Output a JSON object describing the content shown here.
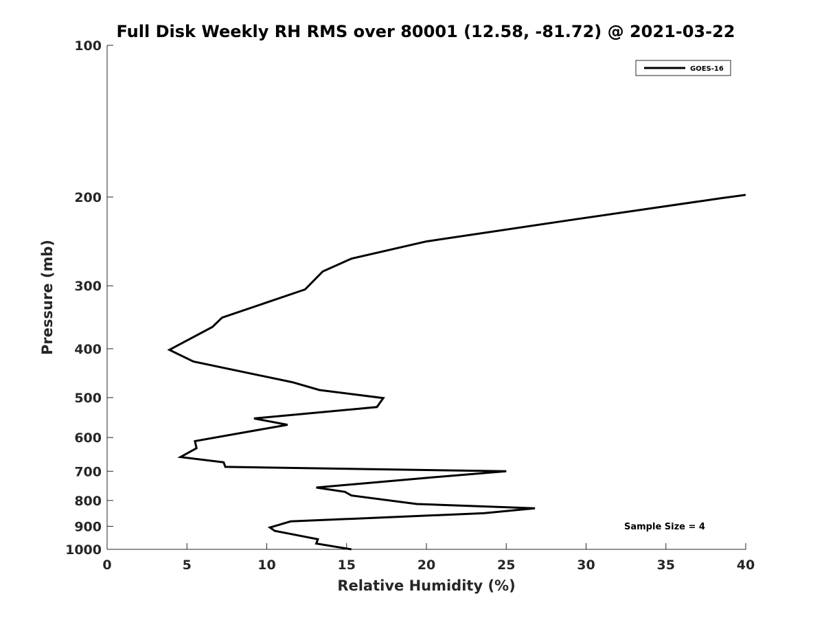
{
  "chart_data": {
    "type": "line",
    "title": "Full Disk Weekly RH RMS over 80001 (12.58, -81.72) @ 2021-03-22",
    "xlabel": "Relative Humidity (%)",
    "ylabel": "Pressure (mb)",
    "xlim": [
      0,
      40
    ],
    "ylim": [
      100,
      1000
    ],
    "yscale": "log",
    "y_reversed": true,
    "grid": false,
    "x_ticks": [
      0,
      5,
      10,
      15,
      20,
      25,
      30,
      35,
      40
    ],
    "y_ticks": [
      100,
      200,
      300,
      400,
      500,
      600,
      700,
      800,
      900,
      1000
    ],
    "legend_position": "top-right",
    "annotation": "Sample Size = 4",
    "series": [
      {
        "name": "GOES-16",
        "color": "#000000",
        "x": [
          40.0,
          38.5,
          29.5,
          20.0,
          15.3,
          13.5,
          12.4,
          7.2,
          6.6,
          3.9,
          5.4,
          11.6,
          13.3,
          17.3,
          16.9,
          9.2,
          11.3,
          5.5,
          5.6,
          4.6,
          7.3,
          7.4,
          25.0,
          20.1,
          13.1,
          14.9,
          15.3,
          19.4,
          26.8,
          23.6,
          11.5,
          10.2,
          10.5,
          12.1,
          13.2,
          13.1,
          15.3
        ],
        "y": [
          198,
          201,
          221,
          245,
          265,
          281,
          305,
          347,
          362,
          402,
          424,
          466,
          483,
          501,
          522,
          550,
          566,
          610,
          630,
          656,
          672,
          686,
          700,
          721,
          754,
          769,
          782,
          813,
          829,
          848,
          880,
          905,
          919,
          940,
          955,
          974,
          1000
        ]
      }
    ]
  }
}
